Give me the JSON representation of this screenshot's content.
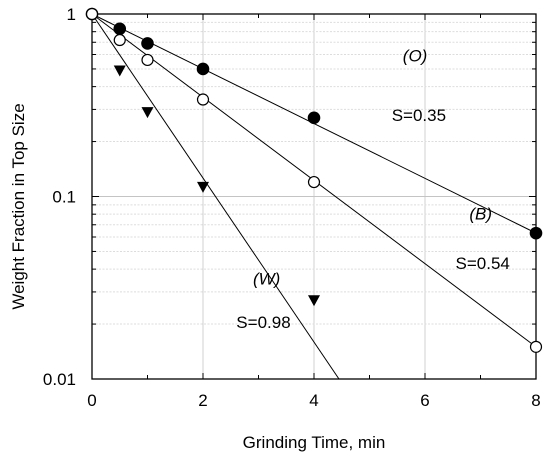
{
  "chart_data": {
    "type": "scatter",
    "title": "",
    "xlabel": "Grinding Time, min",
    "ylabel": "Weight Fraction in Top Size",
    "xlim": [
      0,
      8
    ],
    "ylim": [
      0.01,
      1
    ],
    "yscale": "log",
    "grid": true,
    "x_ticks": [
      "0",
      "2",
      "4",
      "6",
      "8"
    ],
    "y_ticks": [
      "0.01",
      "0.1",
      "1"
    ],
    "series": [
      {
        "marker": "filled-circle",
        "points": [
          {
            "x": 0,
            "y": 1.0
          },
          {
            "x": 0.5,
            "y": 0.83
          },
          {
            "x": 1,
            "y": 0.69
          },
          {
            "x": 2,
            "y": 0.5
          },
          {
            "x": 4,
            "y": 0.27
          },
          {
            "x": 8,
            "y": 0.063
          }
        ],
        "fit": {
          "from": [
            0,
            1.0
          ],
          "to": [
            8,
            0.063
          ]
        }
      },
      {
        "marker": "open-circle",
        "points": [
          {
            "x": 0,
            "y": 1.0
          },
          {
            "x": 0.5,
            "y": 0.72
          },
          {
            "x": 1,
            "y": 0.56
          },
          {
            "x": 2,
            "y": 0.34
          },
          {
            "x": 4,
            "y": 0.12
          },
          {
            "x": 8,
            "y": 0.015
          }
        ],
        "fit": {
          "from": [
            0,
            1.0
          ],
          "to": [
            8,
            0.015
          ]
        }
      },
      {
        "marker": "filled-triangle-down",
        "points": [
          {
            "x": 0.5,
            "y": 0.49
          },
          {
            "x": 1,
            "y": 0.29
          },
          {
            "x": 2,
            "y": 0.113
          },
          {
            "x": 4,
            "y": 0.027
          }
        ],
        "fit": {
          "from": [
            0,
            1.0
          ],
          "to": [
            4.45,
            0.01
          ]
        }
      }
    ],
    "annotations": [
      {
        "text": "(O)",
        "italic": true,
        "x": 5.6,
        "y": 0.55
      },
      {
        "text": "S=0.35",
        "italic": false,
        "x": 5.4,
        "y": 0.26
      },
      {
        "text": "(B)",
        "italic": true,
        "x": 6.8,
        "y": 0.075
      },
      {
        "text": "S=0.54",
        "italic": false,
        "x": 6.55,
        "y": 0.04
      },
      {
        "text": "(W)",
        "italic": true,
        "x": 2.9,
        "y": 0.033
      },
      {
        "text": "S=0.98",
        "italic": false,
        "x": 2.6,
        "y": 0.019
      }
    ],
    "colors": {
      "ink": "#000000",
      "grid": "#d0d0d0",
      "background": "#ffffff"
    }
  }
}
